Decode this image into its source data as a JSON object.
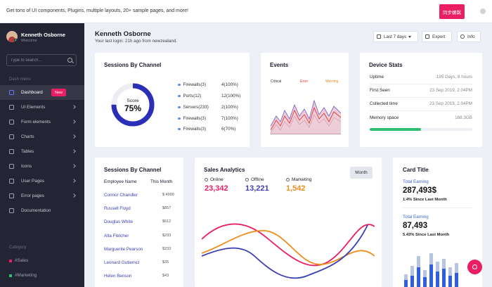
{
  "topbar": {
    "message": "Get tons of UI components, Plugins, multiple layouts, 20+ sample pages, and more!",
    "buy_label": "同步螺粼"
  },
  "sidebar": {
    "user_name": "Kenneth Osborne",
    "user_status": "Welcome",
    "search_placeholder": "Type to search...",
    "section_label": "Dash menu",
    "items": [
      {
        "label": "Dashboard",
        "badge": "New"
      },
      {
        "label": "UI Elements"
      },
      {
        "label": "Form elements"
      },
      {
        "label": "Charts"
      },
      {
        "label": "Tables"
      },
      {
        "label": "Icons"
      },
      {
        "label": "User Pages"
      },
      {
        "label": "Error pages"
      },
      {
        "label": "Documentation"
      }
    ],
    "category_label": "Category",
    "categories": [
      {
        "label": "#Sales",
        "color": "#e91e63"
      },
      {
        "label": "#Marketing",
        "color": "#2fbf71"
      }
    ]
  },
  "header": {
    "title": "Kenneth Osborne",
    "subtitle": "Your last login: 21h ago from newzealand.",
    "range_label": "Last 7 days",
    "export_label": "Export",
    "info_label": "Info"
  },
  "sessions_channel": {
    "title": "Sessions By Channel",
    "score_label": "Score",
    "score_value": "75%",
    "score_fraction": 0.75,
    "items": [
      {
        "label": "Firewalls(3)",
        "value": "4(100%)"
      },
      {
        "label": "Ports(12)",
        "value": "12(100%)"
      },
      {
        "label": "Servers(233)",
        "value": "2(100%)"
      },
      {
        "label": "Firewalls(3)",
        "value": "7(100%)"
      },
      {
        "label": "Firewalls(3)",
        "value": "6(70%)"
      }
    ]
  },
  "events": {
    "title": "Events",
    "legend": [
      "Critical",
      "Error",
      "Warning"
    ]
  },
  "device_stats": {
    "title": "Device Stats",
    "rows": [
      {
        "label": "Uptime",
        "value": "195 Days, 8 hours"
      },
      {
        "label": "First Seen",
        "value": "23 Sep 2019, 2.04PM"
      },
      {
        "label": "Collected time",
        "value": "23 Sep 2019, 2.04PM"
      },
      {
        "label": "Memory space",
        "value": "168.3GB"
      }
    ],
    "memory_fraction": 0.5
  },
  "sessions_table": {
    "title": "Sessions By Channel",
    "col_name": "Employee Name",
    "col_month": "This Month",
    "rows": [
      {
        "name": "Connor Chandler",
        "value": "$ 4909"
      },
      {
        "name": "Russell Floyd",
        "value": "$857"
      },
      {
        "name": "Douglas White",
        "value": "$612"
      },
      {
        "name": "Alta Fletcher",
        "value": "$233"
      },
      {
        "name": "Marguerite Pearson",
        "value": "$233"
      },
      {
        "name": "Leonard Gutierrez",
        "value": "$35"
      },
      {
        "name": "Helen Benson",
        "value": "$43"
      }
    ]
  },
  "sales_analytics": {
    "title": "Sales Analytics",
    "month_button": "Month",
    "stats": [
      {
        "label": "Online",
        "value": "23,342",
        "color": "#e91e63"
      },
      {
        "label": "Offline",
        "value": "13,221",
        "color": "#3b3fb5"
      },
      {
        "label": "Marketing",
        "value": "1,542",
        "color": "#ef8d1c"
      }
    ]
  },
  "card_title": {
    "title": "Card Title",
    "blocks": [
      {
        "label": "Total Earning",
        "value": "287,493$",
        "sub": "1.4% Since Last Month"
      },
      {
        "label": "Total Earning",
        "value": "87,493",
        "sub": "5.43% Since Last Month"
      }
    ]
  },
  "colors": {
    "accent": "#e91e63",
    "primary": "#3b3fb5",
    "sidebar": "#232434",
    "success": "#2fbf71"
  }
}
